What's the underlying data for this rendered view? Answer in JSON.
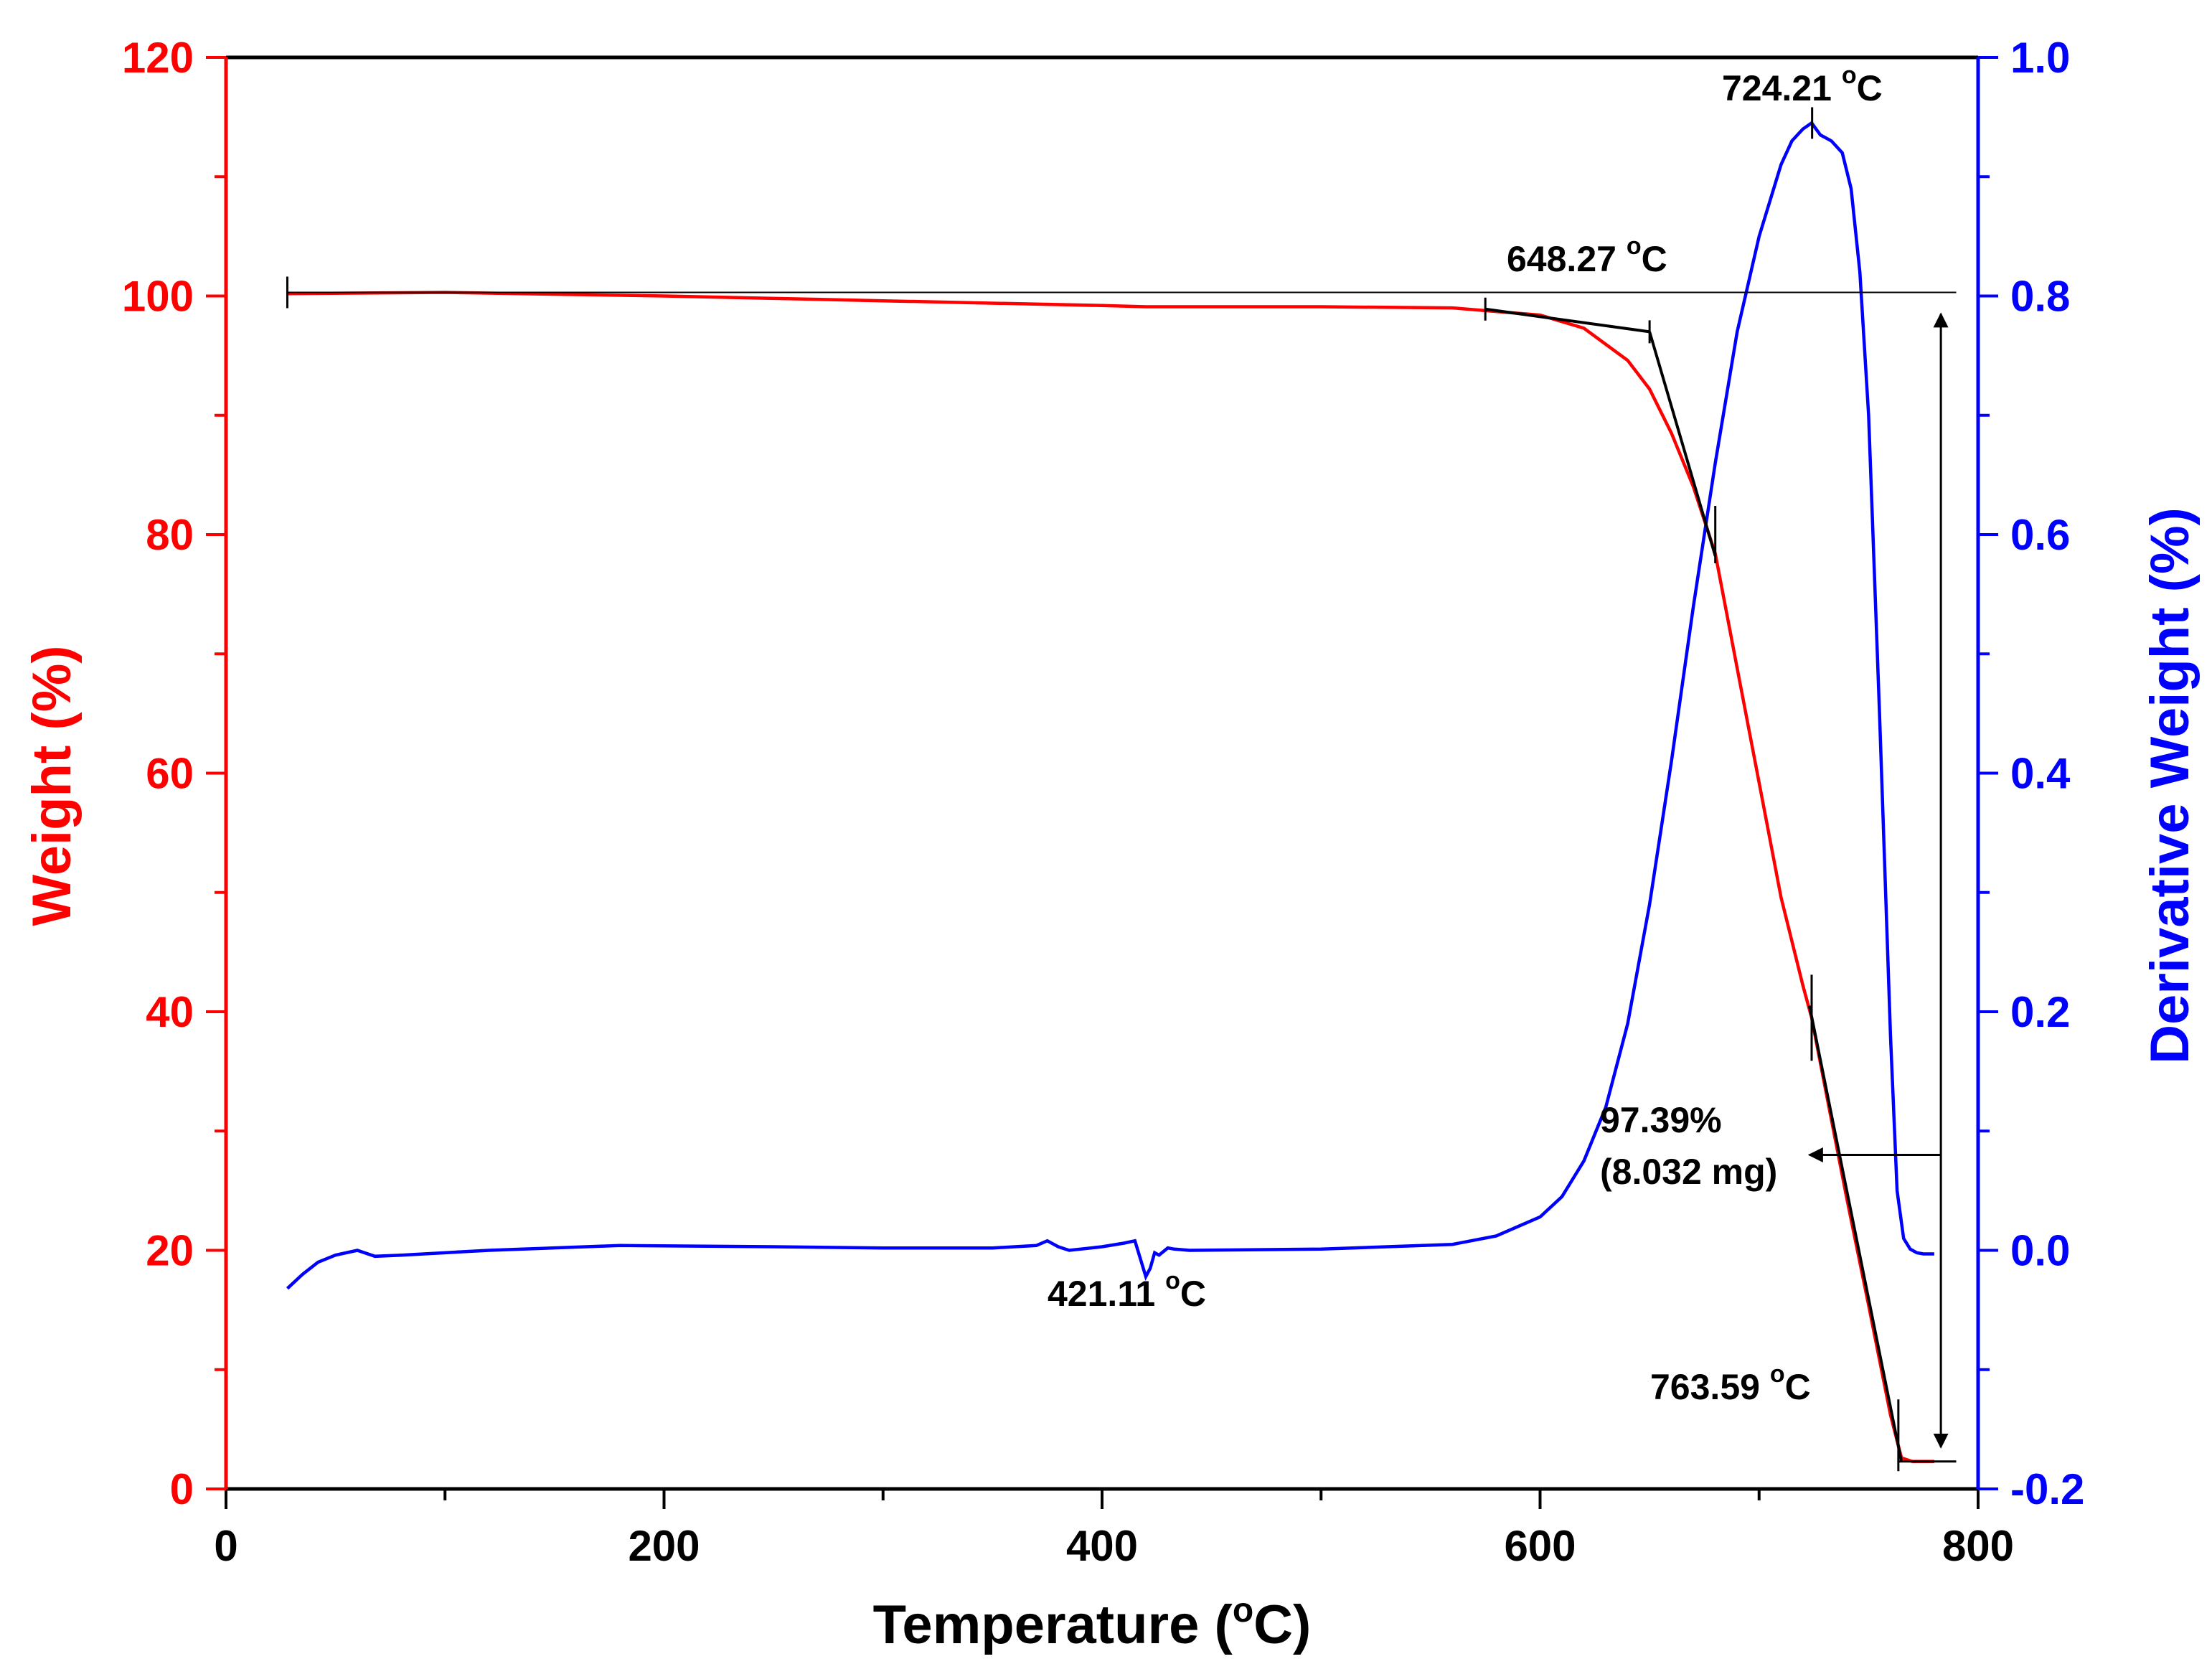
{
  "chart_data": {
    "type": "line",
    "title": "",
    "xlabel": "Temperature (°C)",
    "xlabel_main": "Temperature (",
    "xlabel_unit_sup": "o",
    "xlabel_unit_tail": "C)",
    "ylabel_left": "Weight (%)",
    "ylabel_right": "Derivative Weight (%)",
    "xlim": [
      0,
      800
    ],
    "ylim_left": [
      0,
      120
    ],
    "ylim_right": [
      -0.2,
      1.0
    ],
    "x_ticks": [
      0,
      200,
      400,
      600,
      800
    ],
    "x_tick_labels": [
      "0",
      "200",
      "400",
      "600",
      "800"
    ],
    "y_left_ticks": [
      0,
      20,
      40,
      60,
      80,
      100,
      120
    ],
    "y_left_tick_labels": [
      "0",
      "20",
      "40",
      "60",
      "80",
      "100",
      "120"
    ],
    "y_right_ticks": [
      -0.2,
      0.0,
      0.2,
      0.4,
      0.6,
      0.8,
      1.0
    ],
    "y_right_tick_labels": [
      "-0.2",
      "0.0",
      "0.2",
      "0.4",
      "0.6",
      "0.8",
      "1.0"
    ],
    "grid": false,
    "colors": {
      "weight": "#ff0000",
      "derivative": "#0000ff",
      "annotation": "#000000",
      "axis": "#000000"
    },
    "series": [
      {
        "name": "Weight",
        "axis": "left",
        "color": "#ff0000",
        "x": [
          28,
          100,
          200,
          300,
          400,
          420,
          500,
          560,
          600,
          620,
          640,
          650,
          660,
          670,
          680,
          690,
          700,
          710,
          720,
          724,
          730,
          740,
          750,
          760,
          765,
          770,
          780
        ],
        "y": [
          100.2,
          100.3,
          100.0,
          99.6,
          99.2,
          99.1,
          99.1,
          99.0,
          98.4,
          97.3,
          94.6,
          92.2,
          88.5,
          84.0,
          78.4,
          68.8,
          59.2,
          49.6,
          42.2,
          39.5,
          33.8,
          24.4,
          15.4,
          6.2,
          2.6,
          2.3,
          2.3
        ]
      },
      {
        "name": "Derivative Weight",
        "axis": "right",
        "color": "#0000ff",
        "x": [
          28,
          35,
          42,
          50,
          60,
          68,
          80,
          120,
          180,
          250,
          300,
          350,
          370,
          375,
          380,
          385,
          400,
          410,
          415,
          418,
          420,
          422,
          424,
          426,
          430,
          433,
          440,
          500,
          560,
          580,
          600,
          610,
          620,
          630,
          640,
          650,
          660,
          670,
          680,
          690,
          700,
          710,
          715,
          720,
          724,
          728,
          733,
          738,
          742,
          746,
          750,
          755,
          760,
          763,
          766,
          769,
          772,
          775,
          780
        ],
        "y": [
          -0.032,
          -0.02,
          -0.01,
          -0.004,
          0.0,
          -0.005,
          -0.004,
          0.0,
          0.004,
          0.003,
          0.002,
          0.002,
          0.004,
          0.008,
          0.003,
          0.0,
          0.003,
          0.006,
          0.008,
          -0.01,
          -0.022,
          -0.015,
          -0.002,
          -0.004,
          0.002,
          0.001,
          0.0,
          0.001,
          0.005,
          0.012,
          0.028,
          0.045,
          0.075,
          0.12,
          0.19,
          0.29,
          0.41,
          0.54,
          0.66,
          0.77,
          0.85,
          0.91,
          0.93,
          0.94,
          0.945,
          0.935,
          0.93,
          0.92,
          0.89,
          0.82,
          0.7,
          0.45,
          0.18,
          0.05,
          0.01,
          0.001,
          -0.002,
          -0.003,
          -0.003
        ]
      }
    ],
    "annotations": [
      {
        "text": "724.21 °C",
        "main": "724.21 ",
        "sup": "o",
        "tail": "C",
        "x": 724.21
      },
      {
        "text": "648.27 °C",
        "main": "648.27 ",
        "sup": "o",
        "tail": "C",
        "x": 648.27
      },
      {
        "text": "421.11 °C",
        "main": "421.11 ",
        "sup": "o",
        "tail": "C",
        "x": 421.11
      },
      {
        "text": "763.59 °C",
        "main": "763.59 ",
        "sup": "o",
        "tail": "C",
        "x": 763.59
      },
      {
        "text": "97.39%",
        "weight_loss_percent": 97.39
      },
      {
        "text": "(8.032 mg)",
        "weight_loss_mg": 8.032
      }
    ],
    "reference_lines": {
      "initial_weight": 100.3,
      "final_weight": 2.3,
      "onset_tangent_1": [
        [
          575,
          98.9
        ],
        [
          650,
          97.0
        ]
      ],
      "onset_tangent_2": [
        [
          650,
          97.0
        ],
        [
          680,
          78.2
        ]
      ],
      "steep_tangent": [
        [
          723,
          40.5
        ],
        [
          765,
          2.3
        ]
      ],
      "loss_arrow_x": 783,
      "pointer_arrow_y": 28.0
    }
  }
}
